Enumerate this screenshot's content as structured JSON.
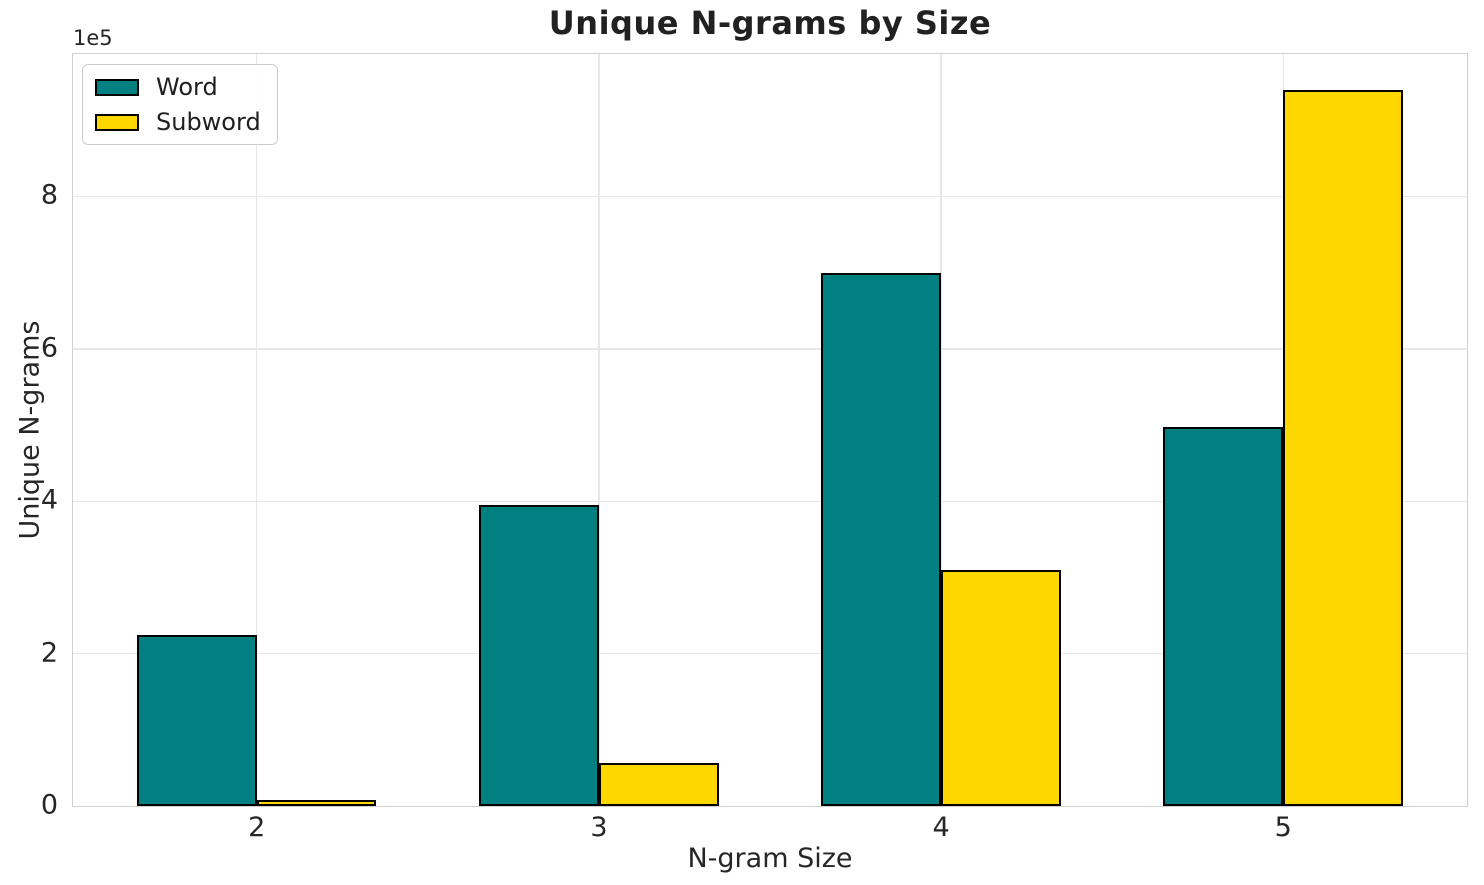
{
  "chart_data": {
    "type": "bar",
    "title": "Unique N-grams by Size",
    "xlabel": "N-gram Size",
    "ylabel": "Unique N-grams",
    "y_offset_label": "1e5",
    "categories": [
      "2",
      "3",
      "4",
      "5"
    ],
    "x_positions": [
      2,
      3,
      4,
      5
    ],
    "series": [
      {
        "name": "Word",
        "color": "#008080",
        "values": [
          225000,
          395000,
          700000,
          498000
        ]
      },
      {
        "name": "Subword",
        "color": "#FFD700",
        "values": [
          7500,
          57000,
          310000,
          940000
        ]
      }
    ],
    "bar_width_data_units": 0.35,
    "bar_edge_color": "#000000",
    "xlim": [
      1.463,
      5.537
    ],
    "ylim": [
      0,
      987000
    ],
    "yticks": [
      0,
      200000,
      400000,
      600000,
      800000
    ],
    "ytick_labels": [
      "0",
      "2",
      "4",
      "6",
      "8"
    ],
    "grid": true,
    "legend_position": "upper-left"
  },
  "style_colors": {
    "background": "#ffffff",
    "grid": "#e7e7e7",
    "spine": "#cfcfcf",
    "tick_text": "#262626",
    "title_text": "#212121"
  }
}
